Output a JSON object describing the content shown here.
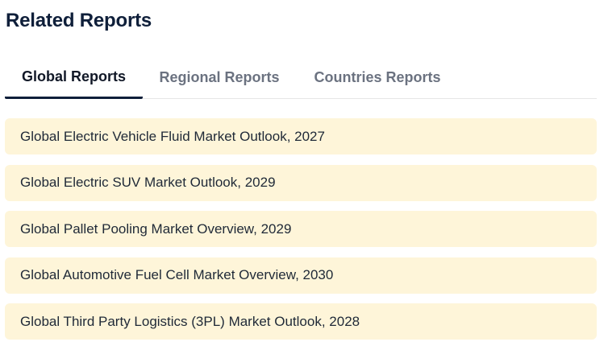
{
  "section": {
    "title": "Related Reports"
  },
  "tabs": [
    {
      "label": "Global Reports",
      "active": true
    },
    {
      "label": "Regional Reports",
      "active": false
    },
    {
      "label": "Countries Reports",
      "active": false
    }
  ],
  "reports": [
    {
      "title": "Global Electric Vehicle Fluid Market Outlook, 2027"
    },
    {
      "title": "Global Electric SUV Market Outlook, 2029"
    },
    {
      "title": "Global Pallet Pooling Market Overview, 2029"
    },
    {
      "title": "Global Automotive Fuel Cell Market Overview, 2030"
    },
    {
      "title": "Global Third Party Logistics (3PL) Market Outlook, 2028"
    }
  ],
  "colors": {
    "title": "#0f1f3a",
    "active_tab": "#111827",
    "inactive_tab": "#6b7280",
    "tab_underline": "#0f1f3a",
    "item_background": "#fef5d9",
    "item_text": "#1f2937"
  }
}
